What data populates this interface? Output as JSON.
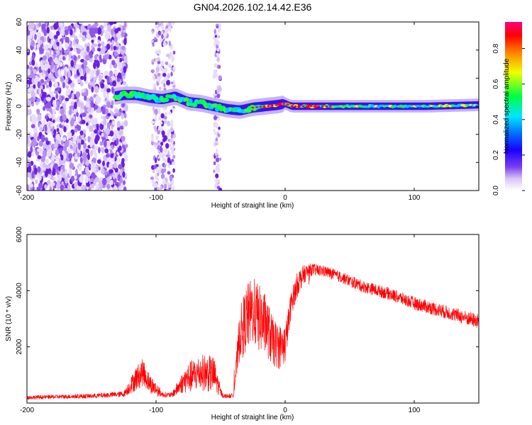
{
  "chart_data": [
    {
      "type": "heatmap",
      "title": "GN04.2026.102.14.42.E36",
      "xlabel": "Height of straight line (km)",
      "ylabel": "Frequency (Hz)",
      "xlim": [
        -200,
        150
      ],
      "ylim": [
        -60,
        60
      ],
      "xticks": [
        -200,
        -100,
        0,
        100
      ],
      "xtick_labels": [
        "-200",
        "-100",
        "0",
        "100"
      ],
      "yticks": [
        60,
        40,
        20,
        0,
        -20,
        -40,
        -60
      ],
      "ytick_labels": [
        "60",
        "40",
        "20",
        "0",
        "-20",
        "-40",
        "-60"
      ],
      "colorbar": {
        "label": "Normalized spectral amplitude",
        "range": [
          0,
          0.95
        ],
        "ticks": [
          0.0,
          0.2,
          0.4,
          0.6,
          0.8
        ],
        "tick_labels": [
          "0.0",
          "0.2",
          "0.4",
          "0.6",
          "0.8"
        ],
        "colors": [
          "#ffffff",
          "#d9c6f5",
          "#7a3ff0",
          "#1a00ff",
          "#0070ff",
          "#00e5ff",
          "#00ff40",
          "#f0ff00",
          "#ff8000",
          "#ff0000",
          "#ff0080"
        ]
      },
      "ridge": {
        "x": [
          -132,
          -125,
          -115,
          -105,
          -95,
          -85,
          -75,
          -65,
          -55,
          -45,
          -35,
          -25,
          -15,
          -5,
          0,
          5,
          15,
          30,
          50,
          80,
          110,
          150
        ],
        "y": [
          7,
          8,
          8,
          6,
          5,
          7,
          3,
          2,
          0,
          -2,
          -3,
          -1,
          0,
          1,
          2,
          0,
          0,
          0,
          0,
          0,
          0,
          1
        ]
      },
      "noise_region": {
        "x": [
          -200,
          -123
        ],
        "freq_range": [
          -60,
          60
        ]
      },
      "noise_stripes": [
        {
          "x": [
            -103,
            -86
          ]
        },
        {
          "x": [
            -55,
            -50
          ]
        }
      ]
    },
    {
      "type": "line",
      "title": "",
      "xlabel": "Height of straight line (km)",
      "ylabel": "SNR (10 * v/v)",
      "xlim": [
        -200,
        150
      ],
      "ylim": [
        0,
        6000
      ],
      "xticks": [
        -200,
        -100,
        0,
        100
      ],
      "xtick_labels": [
        "-200",
        "-100",
        "0",
        "100"
      ],
      "yticks": [
        2000,
        4000,
        6000
      ],
      "ytick_labels": [
        "2000",
        "4000",
        "6000"
      ],
      "series": [
        {
          "name": "SNR",
          "color": "#ff0000",
          "envelope_x": [
            -200,
            -150,
            -125,
            -115,
            -110,
            -105,
            -100,
            -95,
            -88,
            -80,
            -75,
            -65,
            -55,
            -50,
            -48,
            -42,
            -40,
            -35,
            -30,
            -25,
            -20,
            -15,
            -10,
            -5,
            0,
            5,
            10,
            15,
            20,
            30,
            45,
            60,
            80,
            100,
            120,
            150
          ],
          "envelope_mean": [
            200,
            250,
            320,
            900,
            1100,
            700,
            500,
            300,
            280,
            700,
            900,
            1100,
            1000,
            400,
            250,
            250,
            300,
            2500,
            3000,
            3300,
            3000,
            2800,
            2200,
            2000,
            2100,
            3600,
            4300,
            4600,
            4750,
            4700,
            4450,
            4150,
            3900,
            3550,
            3300,
            2900
          ],
          "envelope_spread": [
            70,
            80,
            100,
            450,
            480,
            350,
            250,
            90,
            90,
            350,
            550,
            650,
            650,
            150,
            70,
            70,
            90,
            900,
            1200,
            1200,
            1200,
            1100,
            900,
            800,
            700,
            450,
            450,
            320,
            220,
            200,
            200,
            210,
            220,
            230,
            240,
            260
          ]
        }
      ]
    }
  ]
}
